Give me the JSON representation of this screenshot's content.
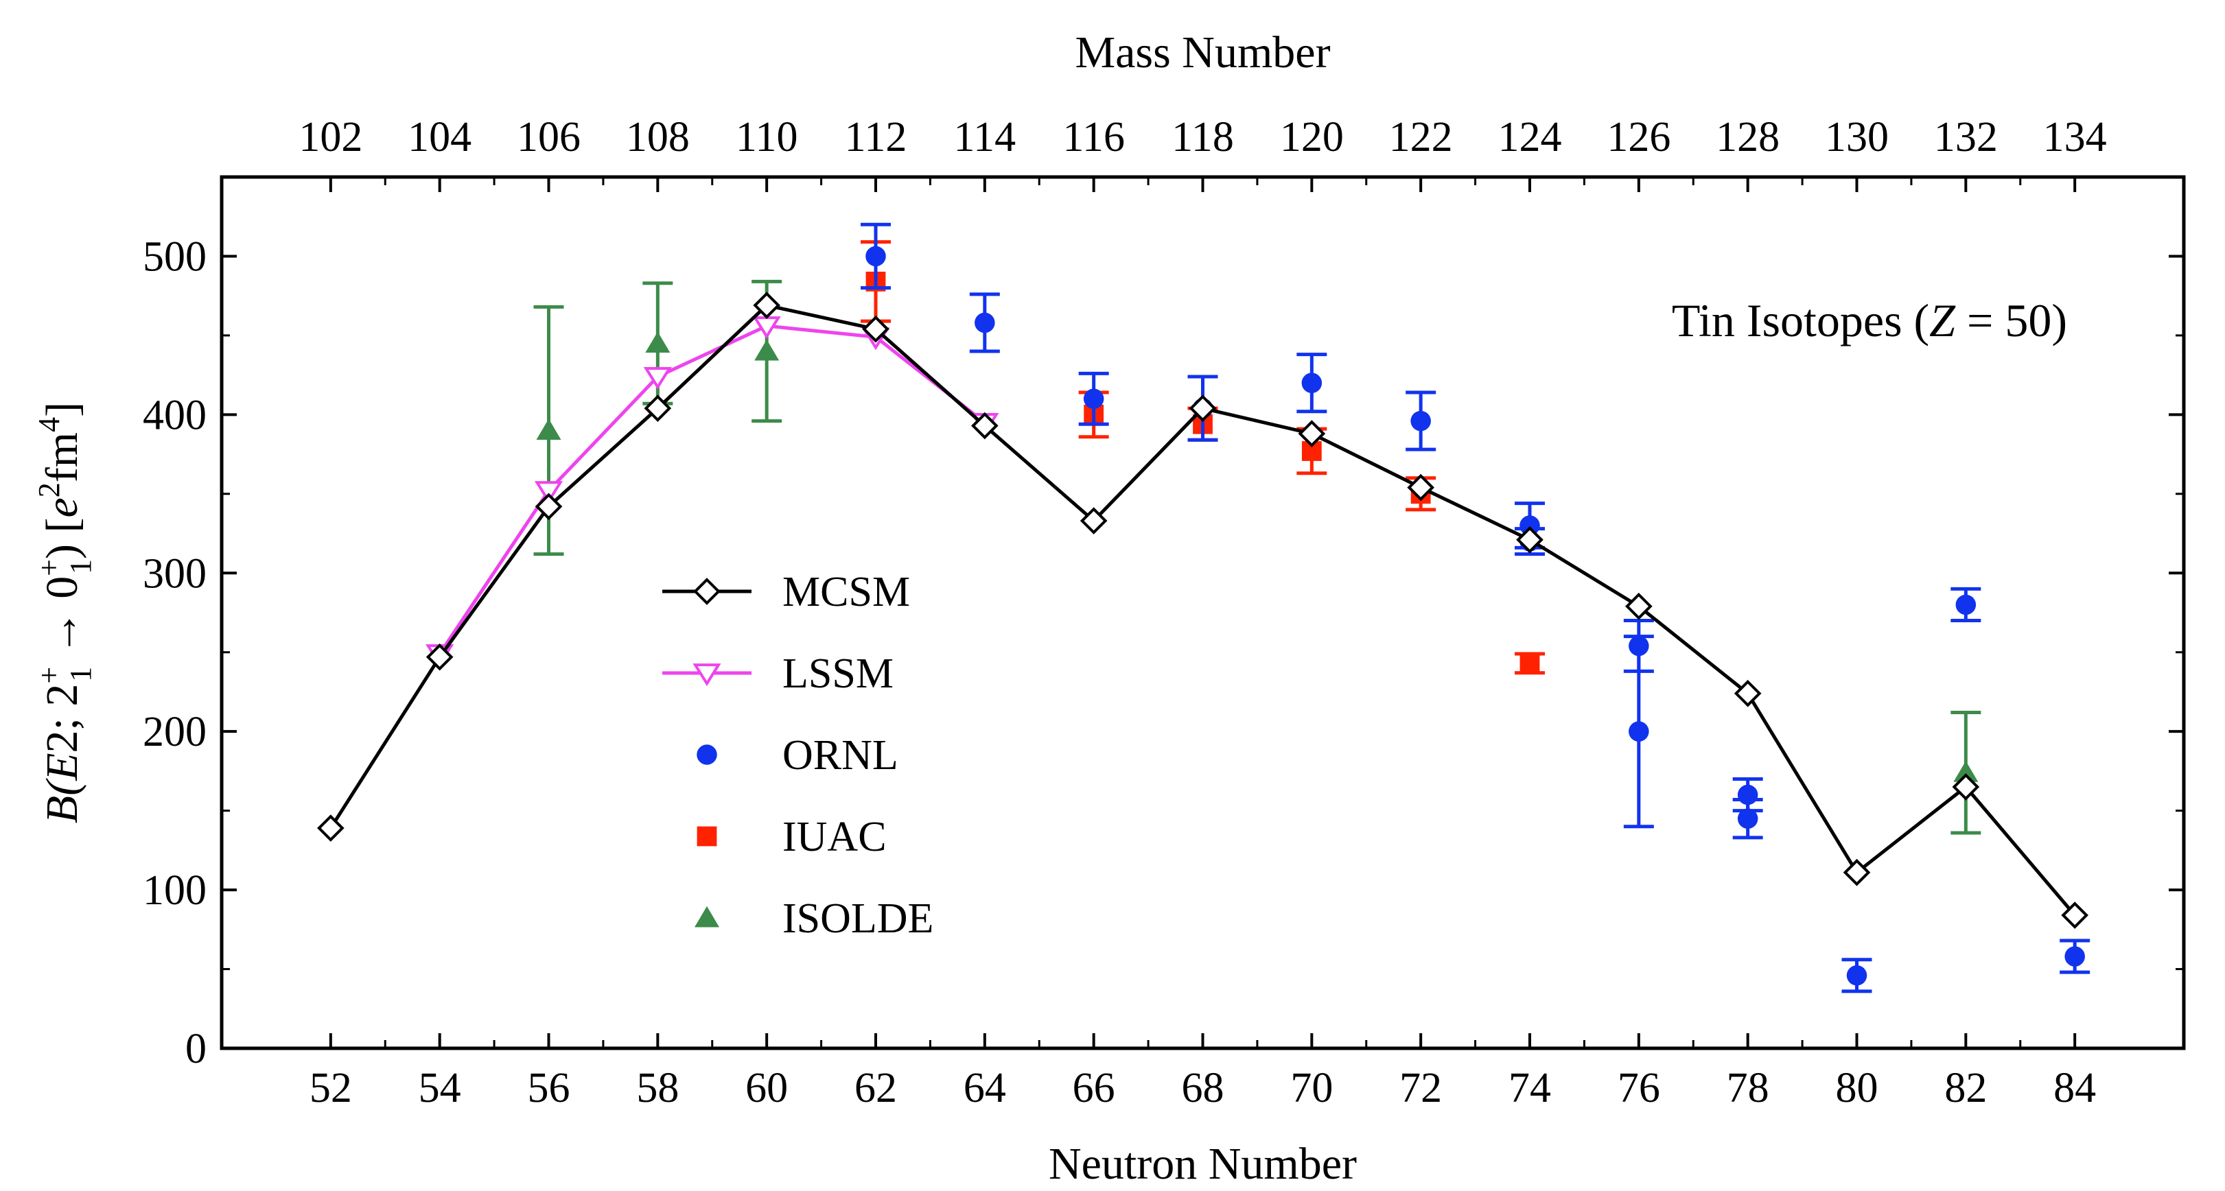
{
  "chart_data": {
    "type": "line",
    "xlabel": "Neutron Number",
    "x2label": "Mass Number",
    "ylabel": {
      "pre": "B(",
      "E": "E",
      "mid": "2; 2",
      "sup1": "+",
      "sub1": "1",
      "arrow": " → 0",
      "sup2": "+",
      "sub2": "1",
      "post": ") [",
      "e": "e",
      "sup3": "2",
      "fm": "fm",
      "sup4": "4",
      "end": "]"
    },
    "annotation": {
      "pre": "Tin Isotopes (",
      "z": "Z",
      "post": " = 50)"
    },
    "xlim": [
      50,
      86
    ],
    "ylim": [
      0,
      550
    ],
    "xticks": [
      52,
      54,
      56,
      58,
      60,
      62,
      64,
      66,
      68,
      70,
      72,
      74,
      76,
      78,
      80,
      82,
      84
    ],
    "x2ticks": [
      "102",
      "104",
      "106",
      "108",
      "110",
      "112",
      "114",
      "116",
      "118",
      "120",
      "122",
      "124",
      "126",
      "128",
      "130",
      "132",
      "134"
    ],
    "yticks": [
      0,
      100,
      200,
      300,
      400,
      500
    ],
    "colors": {
      "MCSM": "#000000",
      "LSSM": "#ee44ee",
      "ORNL": "#1133ee",
      "IUAC": "#ff2200",
      "ISOLDE": "#3d8b4a"
    },
    "series": [
      {
        "name": "MCSM",
        "marker": "diamond-open",
        "line": true,
        "points": [
          [
            52,
            139
          ],
          [
            54,
            247
          ],
          [
            56,
            342
          ],
          [
            58,
            404
          ],
          [
            60,
            469
          ],
          [
            62,
            454
          ],
          [
            64,
            393
          ],
          [
            66,
            333
          ],
          [
            68,
            404
          ],
          [
            70,
            388
          ],
          [
            72,
            354
          ],
          [
            74,
            321
          ],
          [
            76,
            279
          ],
          [
            78,
            224
          ],
          [
            80,
            111
          ],
          [
            82,
            165
          ],
          [
            84,
            84
          ]
        ]
      },
      {
        "name": "LSSM",
        "marker": "triangle-down-open",
        "line": true,
        "points": [
          [
            54,
            249
          ],
          [
            56,
            352
          ],
          [
            58,
            424
          ],
          [
            60,
            456
          ],
          [
            62,
            449
          ],
          [
            64,
            395
          ]
        ]
      },
      {
        "name": "ORNL",
        "marker": "circle",
        "points": [
          [
            62,
            500,
            20
          ],
          [
            64,
            458,
            18
          ],
          [
            66,
            410,
            16
          ],
          [
            68,
            404,
            20
          ],
          [
            70,
            420,
            18
          ],
          [
            72,
            396,
            18
          ],
          [
            74,
            330,
            14
          ],
          [
            74,
            320,
            8
          ],
          [
            76,
            254,
            16
          ],
          [
            76,
            200,
            60
          ],
          [
            78,
            160,
            10
          ],
          [
            78,
            145,
            12
          ],
          [
            80,
            46,
            10
          ],
          [
            82,
            280,
            10
          ],
          [
            84,
            58,
            10
          ]
        ]
      },
      {
        "name": "IUAC",
        "marker": "square",
        "points": [
          [
            62,
            484,
            25
          ],
          [
            66,
            400,
            14
          ],
          [
            68,
            394,
            10
          ],
          [
            70,
            377,
            14
          ],
          [
            72,
            350,
            10
          ],
          [
            74,
            243,
            6
          ]
        ]
      },
      {
        "name": "ISOLDE",
        "marker": "triangle-up",
        "points": [
          [
            56,
            390,
            78
          ],
          [
            58,
            445,
            38
          ],
          [
            60,
            440,
            44
          ],
          [
            82,
            174,
            38
          ]
        ]
      }
    ]
  }
}
